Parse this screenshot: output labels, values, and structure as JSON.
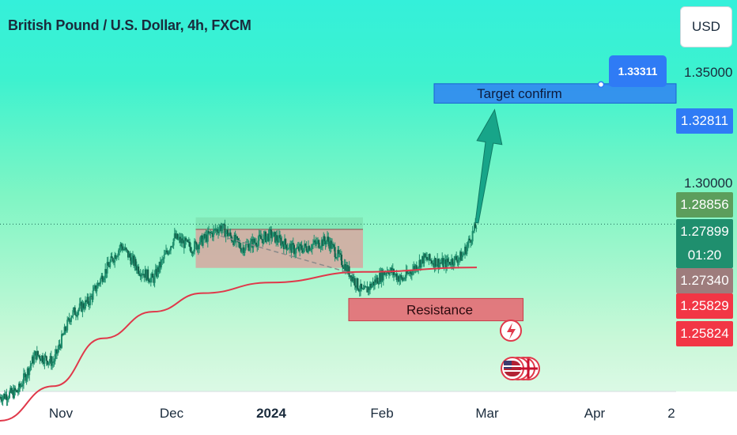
{
  "title": "British Pound / U.S. Dollar, 4h, FXCM",
  "currency_button": "USD",
  "colors": {
    "background_top": "#34f0da",
    "background_bottom": "#eafaf0",
    "candle": "#1f8f6e",
    "moving_average": "#e0384a",
    "target_box": "#2f7bf5",
    "resistance_box": "#e8646f",
    "range_box_top": "#7ee0b0",
    "range_box_bottom": "#d7a7a0",
    "arrow": "#17a589"
  },
  "annotations": {
    "target_label": "Target confirm",
    "resistance_label": "Resistance",
    "callout_value": "1.33311"
  },
  "chart_data": {
    "type": "candlestick",
    "symbol": "British Pound / U.S. Dollar",
    "timeframe": "4h",
    "source": "FXCM",
    "x_tick_labels": [
      "Nov",
      "Dec",
      "2024",
      "Feb",
      "Mar",
      "Apr",
      "2"
    ],
    "y_tick_labels": [
      "1.35000",
      "1.30000"
    ],
    "ylim": [
      1.216,
      1.3633
    ],
    "price_path": [
      [
        "2023-10-26",
        1.214
      ],
      [
        "2023-10-31",
        1.216
      ],
      [
        "2023-11-05",
        1.23
      ],
      [
        "2023-11-10",
        1.227
      ],
      [
        "2023-11-15",
        1.245
      ],
      [
        "2023-11-20",
        1.25
      ],
      [
        "2023-11-24",
        1.26
      ],
      [
        "2023-11-29",
        1.271
      ],
      [
        "2023-12-04",
        1.262
      ],
      [
        "2023-12-08",
        1.258
      ],
      [
        "2023-12-14",
        1.274
      ],
      [
        "2023-12-19",
        1.27
      ],
      [
        "2023-12-27",
        1.278
      ],
      [
        "2024-01-02",
        1.27
      ],
      [
        "2024-01-10",
        1.275
      ],
      [
        "2024-01-17",
        1.269
      ],
      [
        "2024-01-26",
        1.273
      ],
      [
        "2024-02-05",
        1.253
      ],
      [
        "2024-02-12",
        1.262
      ],
      [
        "2024-02-16",
        1.258
      ],
      [
        "2024-02-22",
        1.266
      ],
      [
        "2024-02-28",
        1.264
      ],
      [
        "2024-03-04",
        1.267
      ],
      [
        "2024-03-08",
        1.279
      ]
    ],
    "moving_average_path": [
      [
        "2023-10-26",
        1.205
      ],
      [
        "2023-11-10",
        1.218
      ],
      [
        "2023-11-24",
        1.236
      ],
      [
        "2023-12-08",
        1.246
      ],
      [
        "2023-12-22",
        1.253
      ],
      [
        "2024-01-10",
        1.257
      ],
      [
        "2024-02-05",
        1.261
      ],
      [
        "2024-03-08",
        1.2627
      ]
    ],
    "projection_arrow": {
      "from": [
        "2024-03-08",
        1.2795
      ],
      "to": [
        "2024-03-13",
        1.322
      ]
    },
    "zones": [
      {
        "label": "Target confirm",
        "x_from": "2024-02-25",
        "x_to": "2024-04-30",
        "y_low": 1.3245,
        "y_high": 1.3318
      },
      {
        "label": "Resistance",
        "x_from": "2024-02-01",
        "x_to": "2024-03-21",
        "y_low": 1.2426,
        "y_high": 1.251
      },
      {
        "label": "",
        "x_from": "2023-12-20",
        "x_to": "2024-02-05",
        "y_low": 1.2625,
        "y_high": 1.277,
        "style": "range"
      }
    ],
    "price_badges": [
      {
        "value": "1.32811",
        "color": "#2f7bf5"
      },
      {
        "value": "1.28856",
        "color": "#5c9e5c"
      },
      {
        "value": "1.27899",
        "timer": "01:20",
        "color": "#1f8f6e"
      },
      {
        "value": "1.27340",
        "color": "#9e7c7c"
      },
      {
        "value": "1.25829",
        "color": "#f23645"
      },
      {
        "value": "1.25824",
        "color": "#f23645"
      }
    ],
    "current_price": 1.27899,
    "grid": false
  }
}
